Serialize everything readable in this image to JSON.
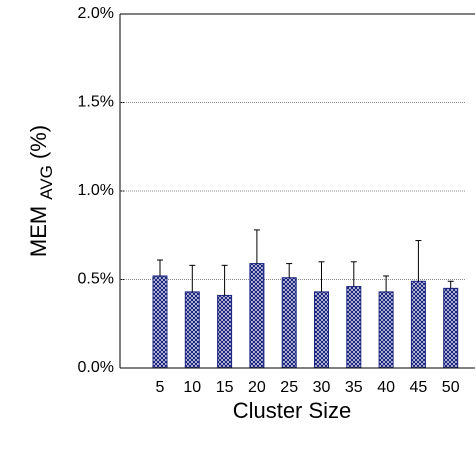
{
  "chart_data": {
    "type": "bar",
    "y_label": [
      "MEM",
      "AVG",
      "(%)"
    ],
    "x_label": "Cluster Size",
    "categories": [
      "5",
      "10",
      "15",
      "20",
      "25",
      "30",
      "35",
      "40",
      "45",
      "50"
    ],
    "values": [
      0.52,
      0.43,
      0.41,
      0.59,
      0.51,
      0.43,
      0.46,
      0.43,
      0.49,
      0.45
    ],
    "errors": [
      0.09,
      0.15,
      0.17,
      0.19,
      0.08,
      0.17,
      0.14,
      0.09,
      0.23,
      0.04
    ],
    "color": "#1a237e",
    "ylim": [
      0,
      2
    ],
    "yticks": [
      {
        "value": 0,
        "label": "0.0%"
      },
      {
        "value": 0.5,
        "label": "0.5%"
      },
      {
        "value": 1,
        "label": "1.0%"
      },
      {
        "value": 1.5,
        "label": "1.5%"
      },
      {
        "value": 2,
        "label": "2.0%"
      }
    ],
    "grid": true
  }
}
